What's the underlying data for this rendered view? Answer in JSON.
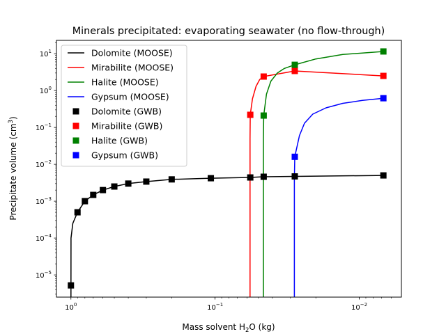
{
  "chart_data": {
    "type": "line",
    "title": "Minerals precipitated: evaporating seawater (no flow-through)",
    "xlabel": "Mass solvent H2O (kg)",
    "xlabel_main": "Mass solvent H",
    "xlabel_sub": "2",
    "xlabel_tail": "O (kg)",
    "ylabel_main": "Precipitate volume (cm",
    "ylabel_sup": "3",
    "ylabel_tail": ")",
    "xscale": "log",
    "yscale": "log",
    "x_reversed": true,
    "xlim": [
      1.26,
      0.0051
    ],
    "ylim": [
      2.5e-06,
      23
    ],
    "grid": false,
    "legend_position": "top-left",
    "x_ticks": [
      {
        "value": 1,
        "base": "10",
        "exp": "0"
      },
      {
        "value": 0.1,
        "base": "10",
        "exp": "−1"
      },
      {
        "value": 0.01,
        "base": "10",
        "exp": "−2"
      }
    ],
    "y_ticks": [
      {
        "value": 1e-05,
        "base": "10",
        "exp": "−5"
      },
      {
        "value": 0.0001,
        "base": "10",
        "exp": "−4"
      },
      {
        "value": 0.001,
        "base": "10",
        "exp": "−3"
      },
      {
        "value": 0.01,
        "base": "10",
        "exp": "−2"
      },
      {
        "value": 0.1,
        "base": "10",
        "exp": "−1"
      },
      {
        "value": 1,
        "base": "10",
        "exp": "0"
      },
      {
        "value": 10,
        "base": "10",
        "exp": "1"
      }
    ],
    "series": [
      {
        "name": "Dolomite (MOOSE)",
        "kind": "line",
        "color": "#000000",
        "points": [
          [
            1.0,
            2e-06
          ],
          [
            0.999,
            0.0001
          ],
          [
            0.97,
            0.00025
          ],
          [
            0.9,
            0.0005
          ],
          [
            0.8,
            0.001
          ],
          [
            0.7,
            0.00148
          ],
          [
            0.6,
            0.002
          ],
          [
            0.5,
            0.0025
          ],
          [
            0.4,
            0.003
          ],
          [
            0.3,
            0.0034
          ],
          [
            0.2,
            0.0039
          ],
          [
            0.107,
            0.0042
          ],
          [
            0.057,
            0.0044
          ],
          [
            0.046,
            0.0046
          ],
          [
            0.028,
            0.0047
          ],
          [
            0.0068,
            0.005
          ]
        ]
      },
      {
        "name": "Mirabilite (MOOSE)",
        "kind": "line",
        "color": "#ff0000",
        "points": [
          [
            0.0572,
            1e-06
          ],
          [
            0.0572,
            0.05
          ],
          [
            0.057,
            0.22
          ],
          [
            0.055,
            0.6
          ],
          [
            0.052,
            1.3
          ],
          [
            0.049,
            2.0
          ],
          [
            0.046,
            2.4
          ],
          [
            0.028,
            3.4
          ],
          [
            0.0068,
            2.5
          ]
        ]
      },
      {
        "name": "Halite (MOOSE)",
        "kind": "line",
        "color": "#008000",
        "points": [
          [
            0.0462,
            1e-06
          ],
          [
            0.0462,
            0.05
          ],
          [
            0.046,
            0.21
          ],
          [
            0.044,
            0.8
          ],
          [
            0.041,
            1.8
          ],
          [
            0.037,
            3.0
          ],
          [
            0.033,
            4.0
          ],
          [
            0.028,
            5
          ],
          [
            0.02,
            7.2
          ],
          [
            0.013,
            9.5
          ],
          [
            0.0068,
            11.5
          ]
        ]
      },
      {
        "name": "Gypsum (MOOSE)",
        "kind": "line",
        "color": "#0000ff",
        "points": [
          [
            0.0282,
            1e-06
          ],
          [
            0.0282,
            0.004
          ],
          [
            0.028,
            0.016
          ],
          [
            0.026,
            0.06
          ],
          [
            0.024,
            0.13
          ],
          [
            0.021,
            0.23
          ],
          [
            0.017,
            0.34
          ],
          [
            0.013,
            0.45
          ],
          [
            0.0095,
            0.54
          ],
          [
            0.0068,
            0.62
          ]
        ]
      },
      {
        "name": "Dolomite (GWB)",
        "kind": "marker",
        "color": "#000000",
        "points": [
          [
            1.0,
            5.2e-06
          ],
          [
            0.9,
            0.0005
          ],
          [
            0.8,
            0.001
          ],
          [
            0.7,
            0.00148
          ],
          [
            0.6,
            0.002
          ],
          [
            0.5,
            0.0025
          ],
          [
            0.4,
            0.003
          ],
          [
            0.3,
            0.0034
          ],
          [
            0.2,
            0.0039
          ],
          [
            0.107,
            0.0042
          ],
          [
            0.057,
            0.0044
          ],
          [
            0.046,
            0.0046
          ],
          [
            0.028,
            0.0047
          ],
          [
            0.0068,
            0.005
          ]
        ]
      },
      {
        "name": "Mirabilite (GWB)",
        "kind": "marker",
        "color": "#ff0000",
        "points": [
          [
            0.057,
            0.22
          ],
          [
            0.046,
            2.4
          ],
          [
            0.028,
            3.4
          ],
          [
            0.0068,
            2.5
          ]
        ]
      },
      {
        "name": "Halite (GWB)",
        "kind": "marker",
        "color": "#008000",
        "points": [
          [
            0.046,
            0.21
          ],
          [
            0.028,
            5
          ],
          [
            0.0068,
            11.5
          ]
        ]
      },
      {
        "name": "Gypsum (GWB)",
        "kind": "marker",
        "color": "#0000ff",
        "points": [
          [
            0.028,
            0.016
          ],
          [
            0.0068,
            0.62
          ]
        ]
      }
    ]
  }
}
